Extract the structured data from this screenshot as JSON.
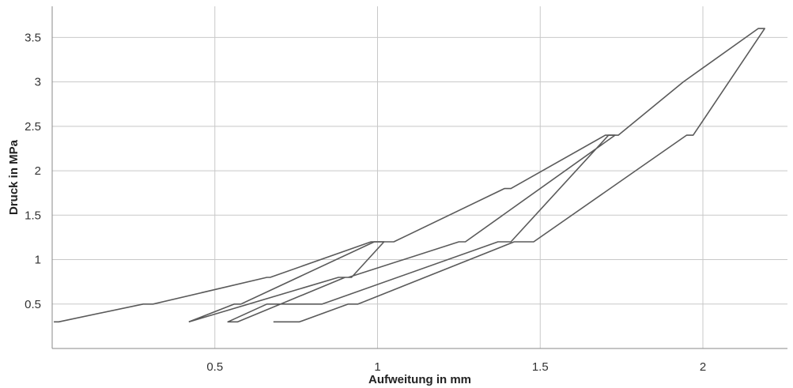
{
  "chart_data": {
    "type": "line",
    "title": "",
    "xlabel": "Aufweitung in mm",
    "ylabel": "Druck in MPa",
    "xlim": [
      0.0,
      2.26
    ],
    "ylim": [
      0.0,
      3.85
    ],
    "grid": true,
    "x_ticks": [
      {
        "value": 0.5,
        "label": "0.5"
      },
      {
        "value": 1,
        "label": "1"
      },
      {
        "value": 1.5,
        "label": "1.5"
      },
      {
        "value": 2,
        "label": "2"
      }
    ],
    "y_ticks": [
      {
        "value": 0.5,
        "label": "0.5"
      },
      {
        "value": 1,
        "label": "1"
      },
      {
        "value": 1.5,
        "label": "1.5"
      },
      {
        "value": 2,
        "label": "2"
      },
      {
        "value": 2.5,
        "label": "2.5"
      },
      {
        "value": 3,
        "label": "3"
      },
      {
        "value": 3.5,
        "label": "3.5"
      }
    ],
    "series": [
      {
        "color": "#5a5a5a",
        "x": [
          0.005,
          0.02,
          0.28,
          0.31,
          0.66,
          0.67,
          0.98,
          1.05,
          1.39,
          1.41,
          1.7,
          1.74,
          1.94,
          2.17,
          2.19,
          2.19,
          1.97,
          1.95,
          1.48,
          1.42,
          0.94,
          0.91,
          0.76,
          0.72,
          0.68
        ],
        "y": [
          0.3,
          0.3,
          0.5,
          0.5,
          0.8,
          0.8,
          1.2,
          1.2,
          1.8,
          1.8,
          2.4,
          2.4,
          3.0,
          3.6,
          3.6,
          3.6,
          2.4,
          2.4,
          1.2,
          1.2,
          0.5,
          0.5,
          0.3,
          0.3,
          0.3
        ]
      },
      {
        "color": "#5a5a5a",
        "x": [
          0.42,
          0.56,
          0.58,
          0.99,
          1.02,
          1.02,
          0.92,
          0.91,
          0.9,
          0.57,
          0.54,
          0.54,
          0.66,
          0.68,
          0.79,
          0.83,
          1.37,
          1.41,
          1.71,
          1.73,
          1.73,
          1.27,
          1.25,
          0.91,
          0.88,
          0.42
        ],
        "y": [
          0.3,
          0.5,
          0.5,
          1.2,
          1.2,
          1.2,
          0.8,
          0.8,
          0.8,
          0.3,
          0.3,
          0.3,
          0.5,
          0.5,
          0.5,
          0.5,
          1.2,
          1.2,
          2.4,
          2.4,
          2.4,
          1.2,
          1.2,
          0.8,
          0.8,
          0.3
        ]
      }
    ]
  }
}
